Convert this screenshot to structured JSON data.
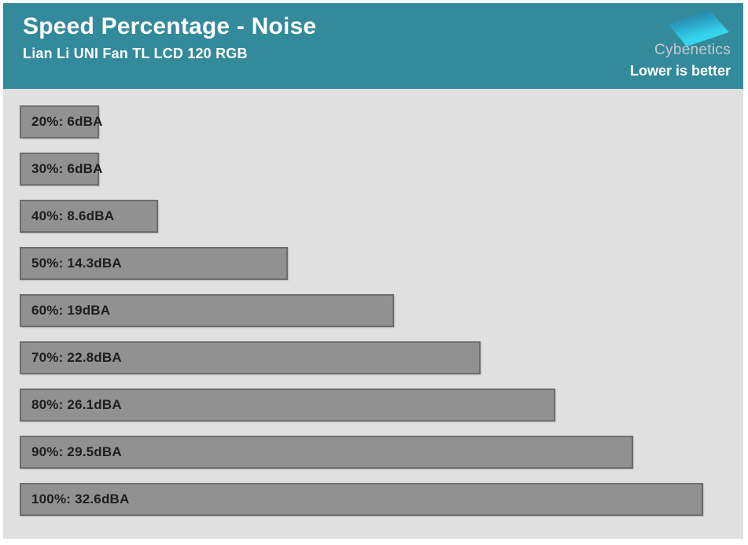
{
  "header": {
    "title": "Speed Percentage - Noise",
    "subtitle": "Lian Li UNI Fan TL LCD 120 RGB",
    "brand": "Cybenetics",
    "note": "Lower is better",
    "background_color": "#338a9b"
  },
  "chart_data": {
    "type": "bar",
    "orientation": "horizontal",
    "title": "Speed Percentage - Noise",
    "subtitle": "Lian Li UNI Fan TL LCD 120 RGB",
    "annotation": "Lower is better",
    "categories": [
      "20%",
      "30%",
      "40%",
      "50%",
      "60%",
      "70%",
      "80%",
      "90%",
      "100%"
    ],
    "values": [
      6,
      6,
      8.6,
      14.3,
      19,
      22.8,
      26.1,
      29.5,
      32.6
    ],
    "unit": "dBA",
    "bar_labels": [
      "20%: 6dBA",
      "30%: 6dBA",
      "40%: 8.6dBA",
      "50%: 14.3dBA",
      "60%: 19dBA",
      "70%: 22.8dBA",
      "80%: 26.1dBA",
      "90%: 29.5dBA",
      "100%: 32.6dBA"
    ],
    "xlim": [
      2.5,
      34.33
    ],
    "grid": false,
    "legend": false,
    "bar_color": "#919191",
    "bar_border_color": "#6e6e6e",
    "plot_background_color": "#e0e0e0",
    "label_color": "#1d1d1d",
    "logo_gradient": [
      "#256f92",
      "#2ba3c6",
      "#33cfe9",
      "#3edff2"
    ]
  }
}
